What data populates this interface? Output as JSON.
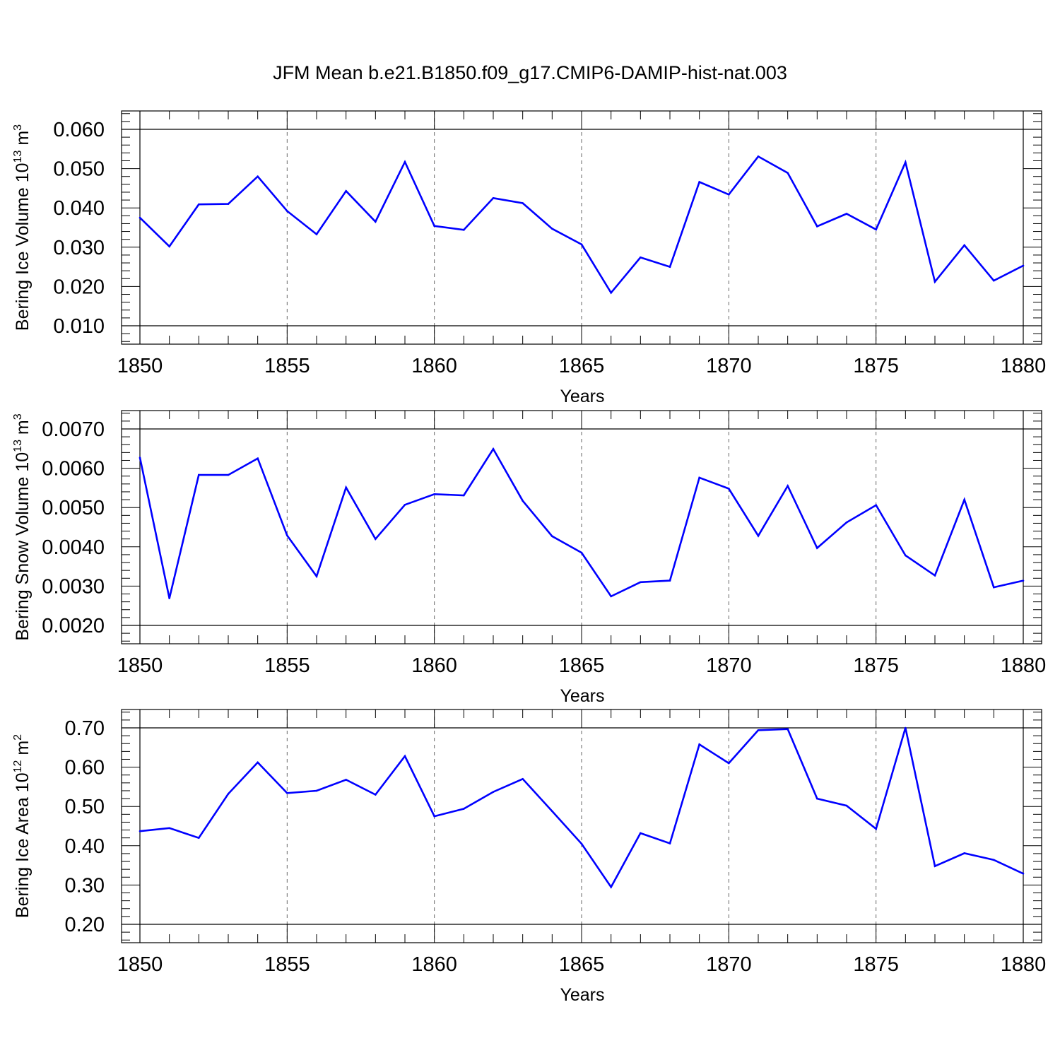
{
  "title": "JFM Mean b.e21.B1850.f09_g17.CMIP6-DAMIP-hist-nat.003",
  "line_color": "#0000ff",
  "chart_data": [
    {
      "type": "line",
      "title": "",
      "xlabel": "Years",
      "ylabel_main": "Bering Ice Volume 10",
      "ylabel_sup": "13",
      "ylabel_unit": "m",
      "ylabel_unit_sup": "3",
      "xlim": [
        1850,
        1880
      ],
      "ylim": [
        0.01,
        0.06
      ],
      "xticks": [
        1850,
        1855,
        1860,
        1865,
        1870,
        1875,
        1880
      ],
      "xtick_labels": [
        "1850",
        "1855",
        "1860",
        "1865",
        "1870",
        "1875",
        "1880"
      ],
      "yticks": [
        0.01,
        0.02,
        0.03,
        0.04,
        0.05,
        0.06
      ],
      "ytick_labels": [
        "0.010",
        "0.020",
        "0.030",
        "0.040",
        "0.050",
        "0.060"
      ],
      "grid": "dashed vertical lines at major x ticks",
      "series": [
        {
          "x": [
            1850,
            1851,
            1852,
            1853,
            1854,
            1855,
            1856,
            1857,
            1858,
            1859,
            1860,
            1861,
            1862,
            1863,
            1864,
            1865,
            1866,
            1867,
            1868,
            1869,
            1870,
            1871,
            1872,
            1873,
            1874,
            1875,
            1876,
            1877,
            1878,
            1879,
            1880
          ],
          "values": [
            0.0375,
            0.0302,
            0.0409,
            0.041,
            0.048,
            0.0392,
            0.0333,
            0.0443,
            0.0365,
            0.0517,
            0.0354,
            0.0344,
            0.0425,
            0.0412,
            0.0347,
            0.0307,
            0.0184,
            0.0274,
            0.025,
            0.0466,
            0.0434,
            0.0531,
            0.0489,
            0.0353,
            0.0385,
            0.0345,
            0.0516,
            0.0212,
            0.0305,
            0.0215,
            0.0253
          ]
        }
      ]
    },
    {
      "type": "line",
      "title": "",
      "xlabel": "Years",
      "ylabel_main": "Bering Snow Volume 10",
      "ylabel_sup": "13",
      "ylabel_unit": "m",
      "ylabel_unit_sup": "3",
      "xlim": [
        1850,
        1880
      ],
      "ylim": [
        0.002,
        0.007
      ],
      "xticks": [
        1850,
        1855,
        1860,
        1865,
        1870,
        1875,
        1880
      ],
      "xtick_labels": [
        "1850",
        "1855",
        "1860",
        "1865",
        "1870",
        "1875",
        "1880"
      ],
      "yticks": [
        0.002,
        0.003,
        0.004,
        0.005,
        0.006,
        0.007
      ],
      "ytick_labels": [
        "0.0020",
        "0.0030",
        "0.0040",
        "0.0050",
        "0.0060",
        "0.0070"
      ],
      "grid": "dashed vertical lines at major x ticks",
      "series": [
        {
          "x": [
            1850,
            1851,
            1852,
            1853,
            1854,
            1855,
            1856,
            1857,
            1858,
            1859,
            1860,
            1861,
            1862,
            1863,
            1864,
            1865,
            1866,
            1867,
            1868,
            1869,
            1870,
            1871,
            1872,
            1873,
            1874,
            1875,
            1876,
            1877,
            1878,
            1879,
            1880
          ],
          "values": [
            0.00627,
            0.00269,
            0.00583,
            0.00583,
            0.00625,
            0.00429,
            0.00325,
            0.00551,
            0.0042,
            0.00507,
            0.00534,
            0.00531,
            0.00649,
            0.00517,
            0.00427,
            0.00385,
            0.00274,
            0.0031,
            0.00314,
            0.00576,
            0.00548,
            0.00428,
            0.00555,
            0.00397,
            0.00462,
            0.00506,
            0.00378,
            0.00327,
            0.0052,
            0.00297,
            0.00314
          ]
        }
      ]
    },
    {
      "type": "line",
      "title": "",
      "xlabel": "Years",
      "ylabel_main": "Bering Ice Area 10",
      "ylabel_sup": "12",
      "ylabel_unit": "m",
      "ylabel_unit_sup": "2",
      "xlim": [
        1850,
        1880
      ],
      "ylim": [
        0.2,
        0.7
      ],
      "xticks": [
        1850,
        1855,
        1860,
        1865,
        1870,
        1875,
        1880
      ],
      "xtick_labels": [
        "1850",
        "1855",
        "1860",
        "1865",
        "1870",
        "1875",
        "1880"
      ],
      "yticks": [
        0.2,
        0.3,
        0.4,
        0.5,
        0.6,
        0.7
      ],
      "ytick_labels": [
        "0.20",
        "0.30",
        "0.40",
        "0.50",
        "0.60",
        "0.70"
      ],
      "grid": "dashed vertical lines at major x ticks",
      "series": [
        {
          "x": [
            1850,
            1851,
            1852,
            1853,
            1854,
            1855,
            1856,
            1857,
            1858,
            1859,
            1860,
            1861,
            1862,
            1863,
            1864,
            1865,
            1866,
            1867,
            1868,
            1869,
            1870,
            1871,
            1872,
            1873,
            1874,
            1875,
            1876,
            1877,
            1878,
            1879,
            1880
          ],
          "values": [
            0.437,
            0.445,
            0.42,
            0.532,
            0.612,
            0.534,
            0.54,
            0.568,
            0.53,
            0.628,
            0.475,
            0.494,
            0.537,
            0.57,
            0.488,
            0.405,
            0.295,
            0.432,
            0.406,
            0.658,
            0.61,
            0.694,
            0.697,
            0.52,
            0.502,
            0.443,
            0.7,
            0.348,
            0.381,
            0.364,
            0.329
          ]
        }
      ]
    }
  ]
}
